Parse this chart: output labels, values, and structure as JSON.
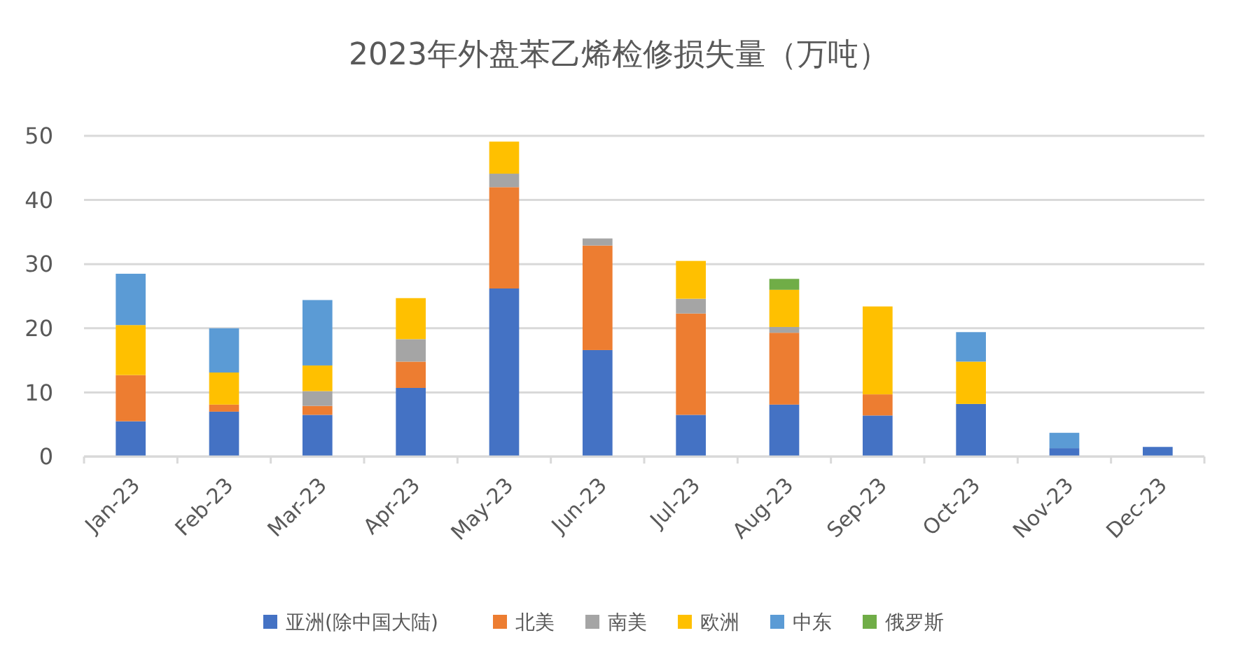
{
  "chart_data": {
    "type": "bar",
    "title": "2023年外盘苯乙烯检修损失量（万吨）",
    "stacked": true,
    "grid": "y",
    "legend": "bottom",
    "categories": [
      "Jan-23",
      "Feb-23",
      "Mar-23",
      "Apr-23",
      "May-23",
      "Jun-23",
      "Jul-23",
      "Aug-23",
      "Sep-23",
      "Oct-23",
      "Nov-23",
      "Dec-23"
    ],
    "ylim": [
      0,
      50
    ],
    "yticks": [
      0,
      10,
      20,
      30,
      40,
      50
    ],
    "series": [
      {
        "name": "亚洲(除中国大陆)",
        "color": "#4472c4",
        "values": [
          5.5,
          7.0,
          6.5,
          10.7,
          26.2,
          16.6,
          6.5,
          8.1,
          6.4,
          8.2,
          1.3,
          1.5
        ]
      },
      {
        "name": "北美",
        "color": "#ed7d31",
        "values": [
          7.2,
          1.1,
          1.4,
          4.1,
          15.8,
          16.3,
          15.8,
          11.2,
          3.3,
          null,
          null,
          null
        ]
      },
      {
        "name": "南美",
        "color": "#a5a5a5",
        "values": [
          null,
          null,
          2.3,
          3.5,
          2.1,
          1.1,
          2.3,
          0.9,
          null,
          null,
          null,
          null
        ]
      },
      {
        "name": "欧洲",
        "color": "#ffc000",
        "values": [
          7.8,
          5.0,
          4.0,
          6.4,
          5.0,
          null,
          5.9,
          5.8,
          13.7,
          6.6,
          null,
          null
        ]
      },
      {
        "name": "中东",
        "color": "#5b9bd5",
        "values": [
          8.0,
          6.9,
          10.2,
          null,
          null,
          null,
          null,
          null,
          null,
          4.6,
          2.4,
          null
        ]
      },
      {
        "name": "俄罗斯",
        "color": "#70ad47",
        "values": [
          null,
          null,
          null,
          null,
          null,
          null,
          null,
          1.7,
          null,
          null,
          null,
          null
        ]
      }
    ]
  }
}
